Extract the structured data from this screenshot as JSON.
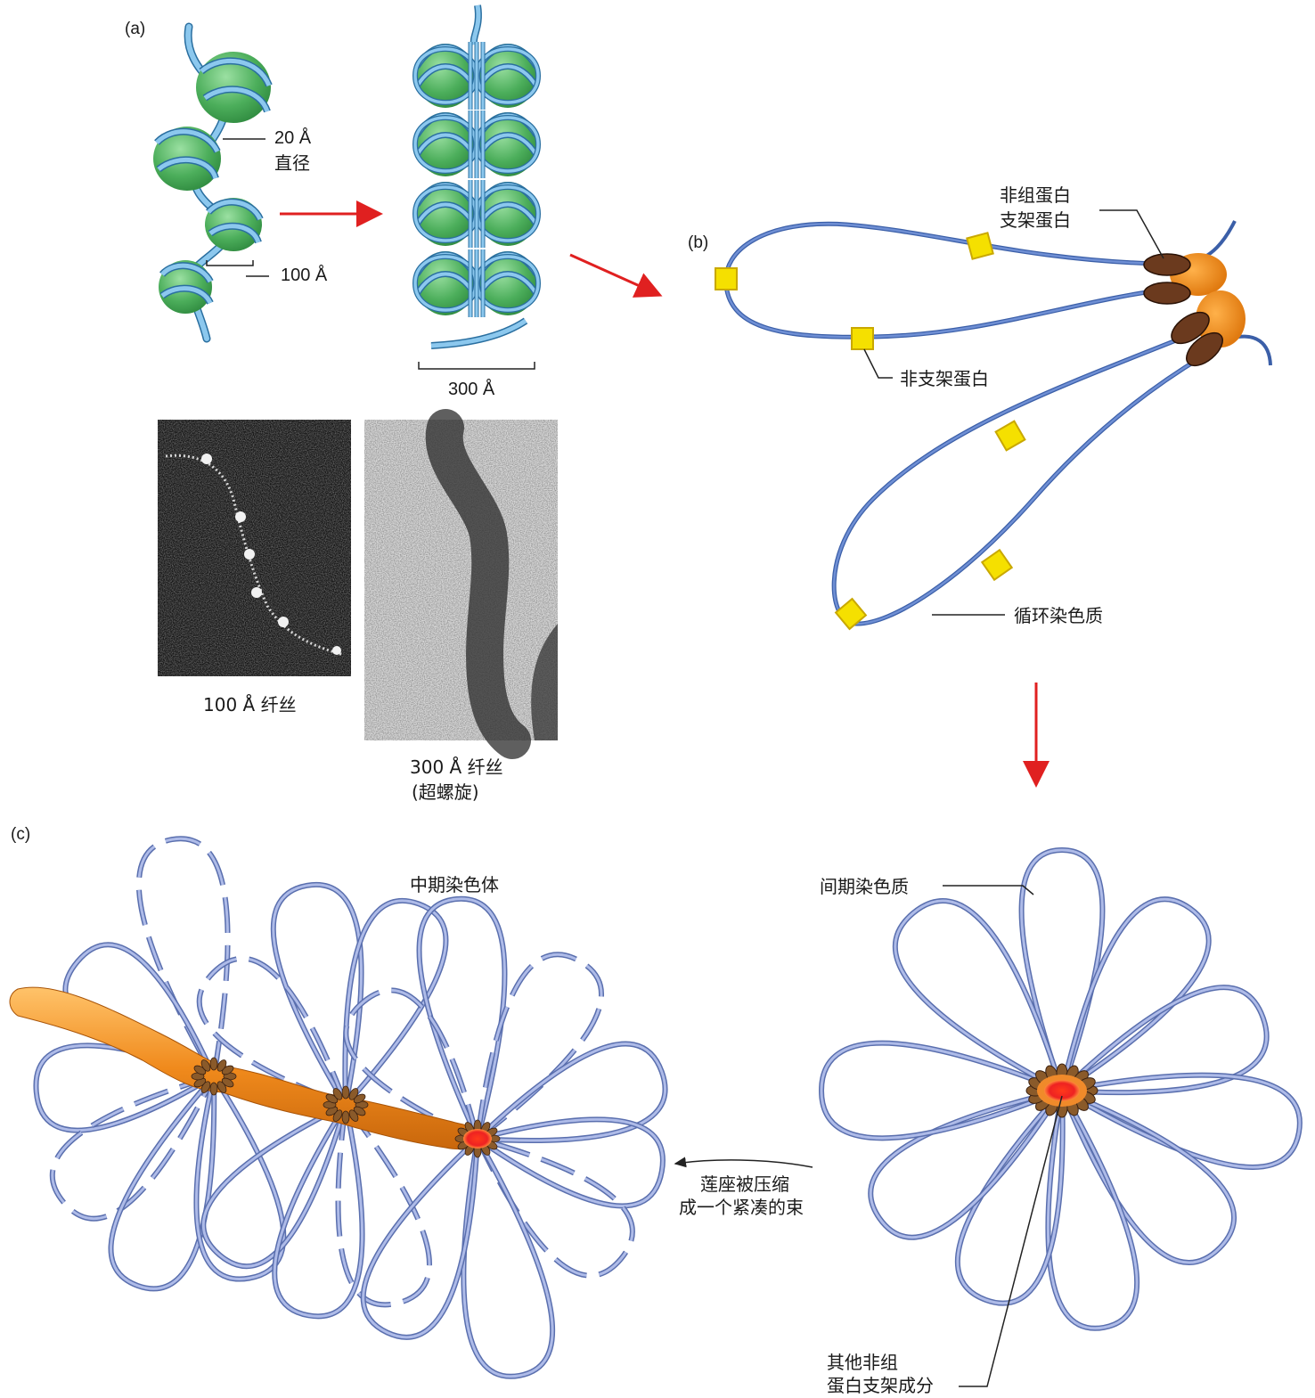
{
  "panels": {
    "a": "(a)",
    "b": "(b)",
    "c": "(c)"
  },
  "labels": {
    "diameter_value": "20 Å",
    "diameter_word": "直径",
    "bead_spacing": "100 Å",
    "fiber_width": "300 Å",
    "micro_100": "100 Å 纤丝",
    "micro_300_line1": "300 Å 纤丝",
    "micro_300_line2": "(超螺旋)",
    "scaffold_line1": "非组蛋白",
    "scaffold_line2": "支架蛋白",
    "nonscaffold": "非支架蛋白",
    "looped": "循环染色质",
    "metaphase": "中期染色体",
    "interphase": "间期染色质",
    "compress_line1": "莲座被压缩",
    "compress_line2": "成一个紧凑的束",
    "other_line1": "其他非组",
    "other_line2": "蛋白支架成分"
  },
  "colors": {
    "dna_blue": "#7ab8e0",
    "histone_green": "#5cba6a",
    "loop_blue": "#8c9fd8",
    "scaffold_brown": "#6b3a1e",
    "nonscaffold_yellow": "#f5e000",
    "scaffold_orange": "#f0962a",
    "arrow_red": "#e02020",
    "center_red": "#ee2222"
  }
}
